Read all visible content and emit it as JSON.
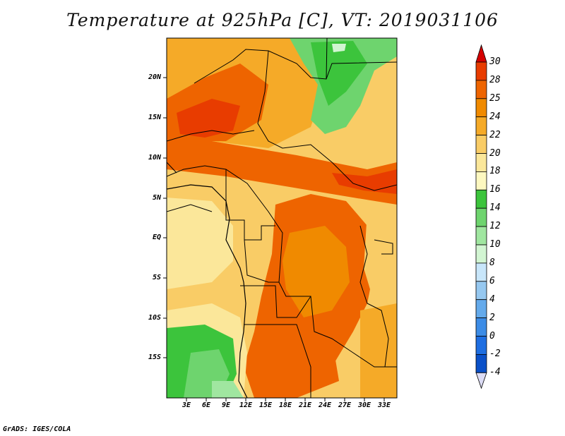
{
  "title": "Temperature at 925hPa [C], VT: 2019031106",
  "credit": "GrADS: IGES/COLA",
  "map": {
    "lat_ticks": [
      "20N",
      "15N",
      "10N",
      "5N",
      "EQ",
      "5S",
      "10S",
      "15S"
    ],
    "lon_ticks": [
      "3E",
      "6E",
      "9E",
      "12E",
      "15E",
      "18E",
      "21E",
      "24E",
      "27E",
      "30E",
      "33E"
    ]
  },
  "colorbar": {
    "labels": [
      "30",
      "28",
      "25",
      "24",
      "22",
      "20",
      "18",
      "16",
      "14",
      "12",
      "10",
      "8",
      "6",
      "4",
      "2",
      "0",
      "-2",
      "-4"
    ],
    "colors": [
      "#d40000",
      "#e83c00",
      "#ee6400",
      "#f08a00",
      "#f5aa28",
      "#f9cc66",
      "#fbe79a",
      "#fdf8c0",
      "#3cc43c",
      "#6ed46e",
      "#a0e6a0",
      "#d2f5d2",
      "#c8e6fa",
      "#96c8f0",
      "#64aaeb",
      "#3c8ce6",
      "#1e6ee1",
      "#0a50c8",
      "#0a28a0",
      "#000a64",
      "#dcdcf5"
    ]
  }
}
